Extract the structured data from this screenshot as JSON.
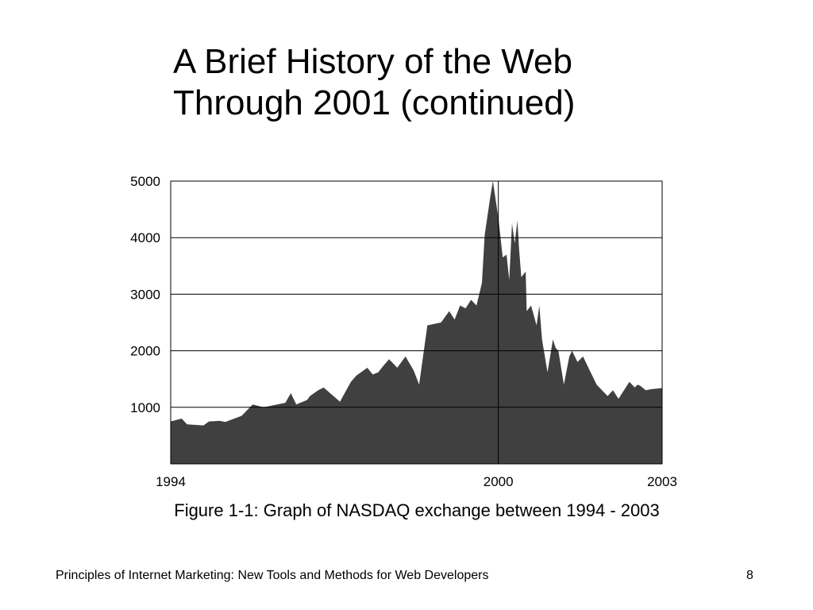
{
  "slide": {
    "title_line1": "A Brief History of the Web",
    "title_line2_main": "Through 2001",
    "title_line2_suffix": "(continued)",
    "footer_book": "Principles of Internet Marketing:",
    "footer_subtitle": "New Tools and Methods for Web Developers",
    "page_number": "8"
  },
  "chart_data": {
    "type": "area",
    "caption": "Figure 1-1: Graph of NASDAQ exchange between 1994 - 2003",
    "xlabel": "",
    "ylabel": "",
    "xlim": [
      1994,
      2003
    ],
    "ylim": [
      0,
      5000
    ],
    "y_ticks": [
      1000,
      2000,
      3000,
      4000,
      5000
    ],
    "x_ticks": [
      1994,
      2000,
      2003
    ],
    "grid": true,
    "fill_color": "#404040",
    "series": [
      {
        "x": [
          1994.0,
          1994.2,
          1994.3,
          1994.6,
          1994.7,
          1994.9,
          1995.0,
          1995.3,
          1995.5,
          1995.7,
          1995.8,
          1995.95,
          1996.1,
          1996.2,
          1996.3,
          1996.5,
          1996.55,
          1996.7,
          1996.8,
          1997.1,
          1997.3,
          1997.4,
          1997.6,
          1997.7,
          1997.8,
          1997.9,
          1998.0,
          1998.15,
          1998.3,
          1998.45,
          1998.55,
          1998.7,
          1998.95,
          1999.1,
          1999.2,
          1999.3,
          1999.4,
          1999.5,
          1999.6,
          1999.7,
          1999.75,
          1999.85,
          1999.9,
          2000.0,
          2000.08,
          2000.15,
          2000.2,
          2000.25,
          2000.3,
          2000.35,
          2000.38,
          2000.42,
          2000.5,
          2000.52,
          2000.6,
          2000.7,
          2000.75,
          2000.8,
          2000.9,
          2001.0,
          2001.05,
          2001.1,
          2001.2,
          2001.3,
          2001.35,
          2001.45,
          2001.55,
          2001.7,
          2001.8,
          2001.9,
          2002.0,
          2002.1,
          2002.2,
          2002.3,
          2002.4,
          2002.5,
          2002.55,
          2002.6,
          2002.7,
          2002.8,
          2002.9,
          2003.0
        ],
        "y": [
          750,
          800,
          700,
          680,
          750,
          760,
          740,
          850,
          1050,
          1000,
          1020,
          1050,
          1080,
          1250,
          1050,
          1130,
          1200,
          1300,
          1350,
          1100,
          1450,
          1560,
          1700,
          1580,
          1620,
          1740,
          1850,
          1700,
          1900,
          1650,
          1400,
          2450,
          2500,
          2700,
          2550,
          2800,
          2750,
          2900,
          2800,
          3200,
          4050,
          4700,
          5050,
          4350,
          3650,
          3700,
          3250,
          4250,
          3900,
          4300,
          3800,
          3300,
          3400,
          2700,
          2800,
          2450,
          2800,
          2200,
          1620,
          2200,
          2050,
          2000,
          1400,
          1900,
          2000,
          1800,
          1900,
          1600,
          1400,
          1300,
          1200,
          1300,
          1150,
          1300,
          1450,
          1350,
          1400,
          1380,
          1300,
          1320,
          1330,
          1340
        ]
      }
    ]
  }
}
